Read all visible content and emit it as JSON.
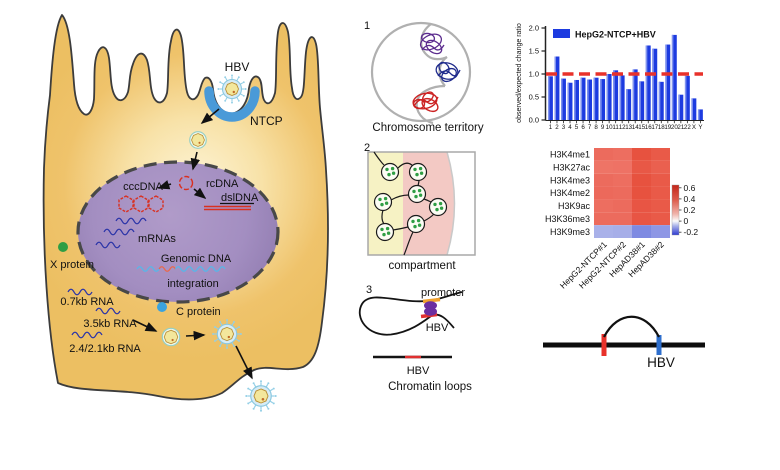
{
  "figure": {
    "cell": {
      "virus_label": "HBV",
      "receptor_label": "NTCP",
      "cccdna_label": "cccDNA",
      "rcdna_label": "rcDNA",
      "dsldna_label": "dslDNA",
      "mrnas_label": "mRNAs",
      "genomic_dna_label": "Genomic DNA",
      "integration_label": "integration",
      "x_protein_label": "X protein",
      "c_protein_label": "C protein",
      "rna_0_7kb_label": "0.7kb RNA",
      "rna_3_5kb_label": "3.5kb RNA",
      "rna_2_4_2_1kb_label": "2.4/2.1kb RNA"
    },
    "panels": {
      "territory": {
        "number": "1",
        "caption": "Chromosome territory"
      },
      "compartment": {
        "number": "2",
        "caption": "compartment"
      },
      "loops": {
        "number": "3",
        "caption": "Chromatin loops",
        "promoter_label": "promoter",
        "loop_hbv_label": "HBV",
        "track_hbv_label": "HBV"
      }
    },
    "arc_diagram": {
      "label": "HBV"
    },
    "colors": {
      "cell_fill": "#eec26a",
      "nucleus_fill": "#a38ec1",
      "ntcp_receptor": "#4a9ad8",
      "x_protein_dot": "#2f9e44",
      "c_protein_dot": "#3aa3de",
      "territory_purple": "#5b2b8e",
      "territory_navy": "#1f2b8c",
      "territory_red": "#cc2222",
      "compartment_a_fill": "#f6f2c4",
      "compartment_b_fill": "#f3c9c4",
      "promoter_segment": "#f0a12f",
      "hbv_segment": "#e03030",
      "arc_red_tick": "#e8312a",
      "arc_blue_tick": "#2e6fce"
    }
  },
  "chart_data": [
    {
      "type": "bar",
      "title": "",
      "series_name": "HepG2-NTCP+HBV",
      "ylabel": "observed/expected change ratio",
      "ylim": [
        0,
        2.0
      ],
      "yticks": [
        0,
        0.5,
        1.0,
        1.5,
        2.0
      ],
      "categories": [
        "1",
        "2",
        "3",
        "4",
        "5",
        "6",
        "7",
        "8",
        "9",
        "10",
        "11",
        "12",
        "13",
        "14",
        "15",
        "16",
        "17",
        "18",
        "19",
        "20",
        "21",
        "22",
        "X",
        "Y"
      ],
      "values": [
        0.95,
        1.38,
        0.9,
        0.81,
        0.87,
        0.92,
        0.88,
        0.92,
        0.89,
        1.0,
        1.08,
        0.97,
        0.67,
        1.1,
        0.84,
        1.62,
        1.55,
        0.83,
        1.64,
        1.85,
        0.55,
        0.96,
        0.47,
        0.23
      ],
      "reference_line": 1.0,
      "bar_color": "#1d3be0",
      "bar_highlight": "#8093ee",
      "reference_color": "#e8312a",
      "legend_position": "top-left",
      "grid": false
    },
    {
      "type": "heatmap",
      "rows": [
        "H3K4me1",
        "H3K27ac",
        "H3K4me3",
        "H3K4me2",
        "H3K9ac",
        "H3K36me3",
        "H3K9me3"
      ],
      "columns": [
        "HepG2-NTCP#1",
        "HepG2-NTCP#2",
        "HepAD38#1",
        "HepAD38#2"
      ],
      "values": [
        [
          0.48,
          0.47,
          0.56,
          0.53
        ],
        [
          0.45,
          0.45,
          0.54,
          0.51
        ],
        [
          0.48,
          0.47,
          0.56,
          0.53
        ],
        [
          0.48,
          0.48,
          0.56,
          0.53
        ],
        [
          0.47,
          0.48,
          0.55,
          0.53
        ],
        [
          0.48,
          0.48,
          0.55,
          0.53
        ],
        [
          -0.13,
          -0.14,
          -0.24,
          -0.19
        ]
      ],
      "cell_colors": [
        [
          "#ec6b5d",
          "#ed6e60",
          "#e7523f",
          "#e95a48"
        ],
        [
          "#ee7466",
          "#ee7265",
          "#e85846",
          "#ea604f"
        ],
        [
          "#ec6b5d",
          "#ed6e60",
          "#e7523f",
          "#e95a48"
        ],
        [
          "#ec695b",
          "#ec6b5d",
          "#e7523f",
          "#e95a48"
        ],
        [
          "#ed6e60",
          "#ec6b5d",
          "#e85544",
          "#e95a48"
        ],
        [
          "#ec6b5d",
          "#ec6b5d",
          "#e85544",
          "#e95a48"
        ],
        [
          "#a9b1e9",
          "#a6aee8",
          "#7e8ae2",
          "#8e97e5"
        ]
      ],
      "colorbar_ticks": [
        "0.6",
        "0.4",
        "0.2",
        "0",
        "-0.2"
      ],
      "colorbar_range": [
        -0.25,
        0.65
      ]
    }
  ]
}
